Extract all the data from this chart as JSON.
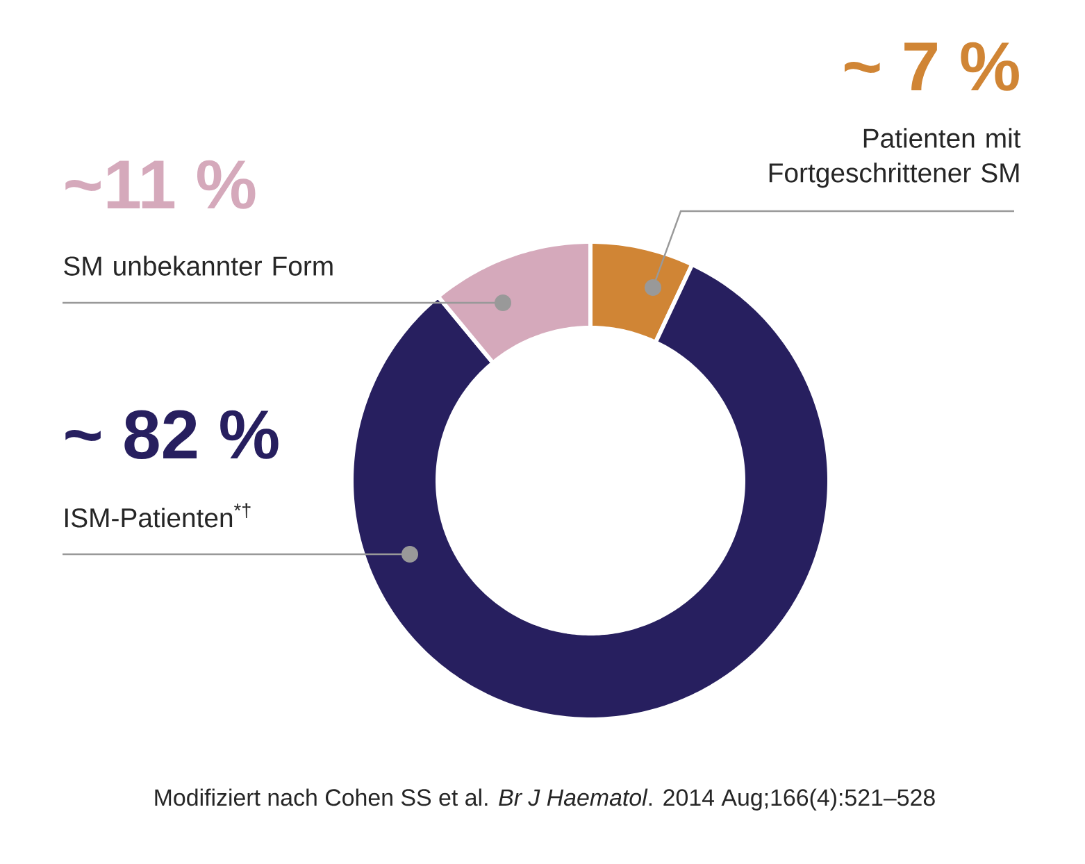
{
  "chart_data": {
    "type": "donut",
    "categories": [
      "Patienten mit Fortgeschrittener SM",
      "ISM-Patienten$^{*†}$",
      "SM unbekannter Form"
    ],
    "values": [
      7,
      82,
      11
    ],
    "colors": [
      "#d08535",
      "#271f5f",
      "#d5a9bb"
    ],
    "value_labels": [
      "~ 7 %",
      "~ 82 %",
      "~11 %"
    ],
    "annotations": [
      "Modifiziert nach Cohen SS et al. *Br J Haematol*. 2014 Aug;166(4):521–528"
    ]
  }
}
